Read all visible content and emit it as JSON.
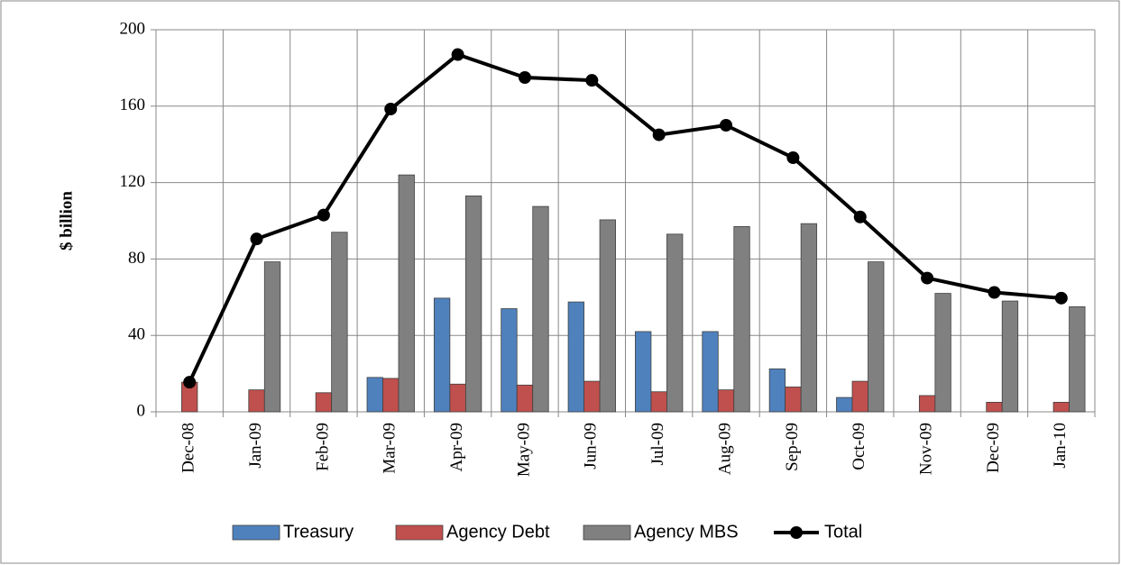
{
  "chart_data": {
    "type": "bar",
    "y_label": "$ billion",
    "categories": [
      "Dec-08",
      "Jan-09",
      "Feb-09",
      "Mar-09",
      "Apr-09",
      "May-09",
      "Jun-09",
      "Jul-09",
      "Aug-09",
      "Sep-09",
      "Oct-09",
      "Nov-09",
      "Dec-09",
      "Jan-10"
    ],
    "series": [
      {
        "name": "Treasury",
        "color": "#4f81bd",
        "values": [
          0,
          0,
          0,
          18,
          59.5,
          54,
          57.5,
          42,
          42,
          22.5,
          7.5,
          0,
          0,
          0
        ]
      },
      {
        "name": "Agency Debt",
        "color": "#c0504d",
        "values": [
          15.5,
          11.5,
          10,
          17.5,
          14.5,
          14,
          16,
          10.5,
          11.5,
          13,
          16,
          8.5,
          5,
          5
        ]
      },
      {
        "name": "Agency MBS",
        "color": "#808080",
        "values": [
          0,
          78.5,
          94,
          124,
          113,
          107.5,
          100.5,
          93,
          97,
          98.5,
          78.5,
          62,
          58,
          55
        ]
      },
      {
        "name": "Total",
        "color": "#000000",
        "type": "line",
        "values": [
          15.5,
          90.5,
          103,
          158.5,
          187,
          175,
          173.5,
          145,
          150,
          133,
          102,
          70,
          62.5,
          59.5
        ]
      }
    ],
    "ylim": [
      0,
      200
    ],
    "yticks": [
      0,
      40,
      80,
      120,
      160,
      200
    ],
    "grid": true,
    "legend": "bottom"
  }
}
